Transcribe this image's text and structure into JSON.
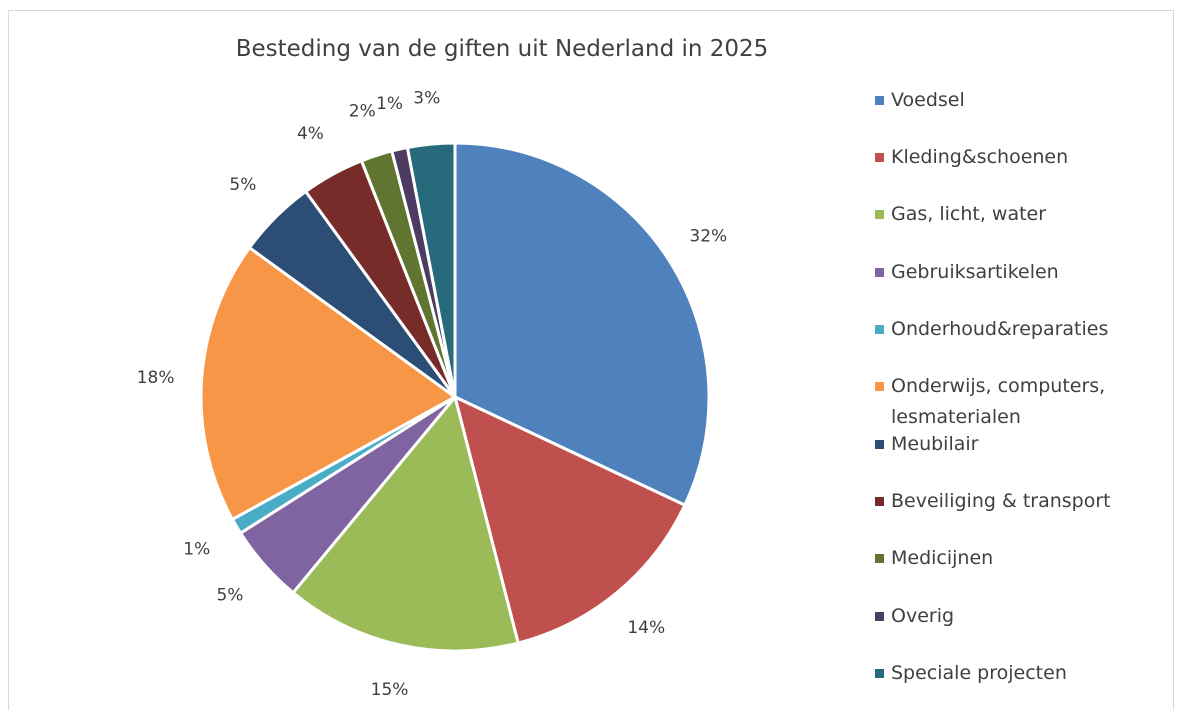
{
  "chart_data": {
    "type": "pie",
    "title": "Besteding van de giften uit Nederland in 2025",
    "categories": [
      "Voedsel",
      "Kleding&schoenen",
      "Gas, licht, water",
      "Gebruiksartikelen",
      "Onderhoud&reparaties",
      "Onderwijs, computers, lesmaterialen",
      "Meubilair",
      "Beveiliging & transport",
      "Medicijnen",
      "Overig",
      "Speciale projecten"
    ],
    "values": [
      32,
      14,
      15,
      5,
      1,
      18,
      5,
      4,
      2,
      1,
      3
    ],
    "labels": [
      "32%",
      "14%",
      "15%",
      "5%",
      "1%",
      "18%",
      "5%",
      "4%",
      "2%",
      "1%",
      "3%"
    ],
    "colors": [
      "#4f81bd",
      "#c0504d",
      "#9bbb59",
      "#8064a2",
      "#4bacc6",
      "#f79646",
      "#2c4d75",
      "#772c2a",
      "#5f7530",
      "#4d3b62",
      "#276a7c"
    ],
    "legend": "right"
  }
}
